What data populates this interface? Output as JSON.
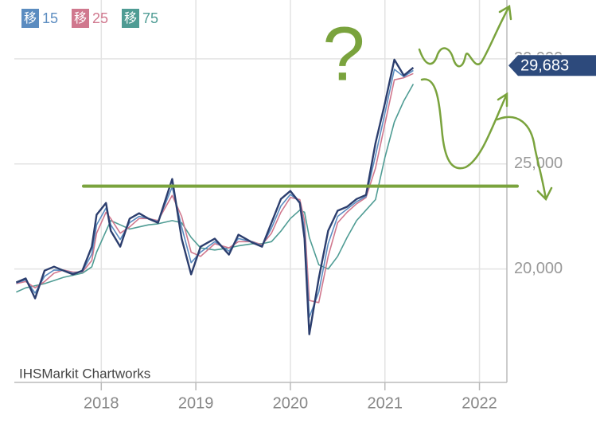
{
  "chart_data": {
    "type": "line",
    "legend_prefix": "移",
    "x": [
      2017.1,
      2017.2,
      2017.3,
      2017.4,
      2017.5,
      2017.6,
      2017.7,
      2017.8,
      2017.9,
      2017.95,
      2018.05,
      2018.1,
      2018.2,
      2018.3,
      2018.4,
      2018.5,
      2018.6,
      2018.75,
      2018.85,
      2018.95,
      2019.05,
      2019.2,
      2019.35,
      2019.45,
      2019.6,
      2019.7,
      2019.8,
      2019.9,
      2020.0,
      2020.1,
      2020.15,
      2020.2,
      2020.3,
      2020.4,
      2020.5,
      2020.6,
      2020.7,
      2020.8,
      2020.9,
      2021.0,
      2021.1,
      2021.2,
      2021.3
    ],
    "price": {
      "color": "#2c3e6e",
      "values": [
        19360,
        19550,
        18600,
        19920,
        20110,
        19920,
        19740,
        19920,
        21060,
        22580,
        23140,
        21820,
        21060,
        22390,
        22650,
        22390,
        22200,
        24280,
        21440,
        19740,
        21060,
        21440,
        20680,
        21630,
        21250,
        21060,
        22200,
        23330,
        23710,
        23140,
        21440,
        16890,
        19550,
        21820,
        22770,
        22960,
        23330,
        23520,
        25990,
        27880,
        29960,
        29210,
        29580
      ]
    },
    "series": [
      {
        "name": "15",
        "color": "#5b8cc0",
        "values": [
          19330,
          19480,
          18850,
          19650,
          19950,
          19930,
          19800,
          19880,
          20700,
          22100,
          22900,
          22100,
          21400,
          22200,
          22500,
          22400,
          22250,
          23900,
          22000,
          20300,
          20800,
          21300,
          20850,
          21450,
          21280,
          21100,
          21950,
          23000,
          23550,
          23200,
          21900,
          17700,
          18900,
          21200,
          22500,
          22850,
          23200,
          23450,
          25400,
          27400,
          29500,
          29150,
          29450
        ]
      },
      {
        "name": "25",
        "color": "#d0788e",
        "values": [
          19300,
          19400,
          19100,
          19400,
          19800,
          19950,
          19850,
          19850,
          20400,
          21700,
          22700,
          22400,
          21700,
          22000,
          22400,
          22400,
          22300,
          23500,
          22500,
          20800,
          20600,
          21200,
          21000,
          21300,
          21300,
          21150,
          21700,
          22700,
          23400,
          23300,
          22300,
          18500,
          18400,
          20600,
          22200,
          22700,
          23100,
          23400,
          24800,
          26900,
          29000,
          29100,
          29300
        ]
      },
      {
        "name": "75",
        "color": "#4f9c94",
        "values": [
          18900,
          19100,
          19200,
          19300,
          19450,
          19600,
          19700,
          19800,
          20100,
          20800,
          21800,
          22300,
          22100,
          21900,
          22000,
          22100,
          22150,
          22300,
          22200,
          21500,
          21000,
          20900,
          21000,
          21100,
          21200,
          21200,
          21300,
          21800,
          22400,
          22800,
          22700,
          21500,
          20200,
          20000,
          20600,
          21500,
          22300,
          22800,
          23300,
          25300,
          27000,
          28000,
          28800
        ]
      }
    ],
    "xlim": [
      2017.08,
      2022.29
    ],
    "xticks": [
      2018,
      2019,
      2020,
      2021,
      2022
    ],
    "ylim": [
      14600,
      32800
    ],
    "yticks": [
      {
        "value": 20000,
        "label": "20,000"
      },
      {
        "value": 25000,
        "label": "25,000"
      },
      {
        "value": 30000,
        "label": "30,000"
      }
    ],
    "grid": true,
    "price_marker": {
      "value": 29683,
      "label": "29,683"
    },
    "level_line": 23940,
    "annotation": "?",
    "watermark": "IHSMarkit Chartworks"
  }
}
